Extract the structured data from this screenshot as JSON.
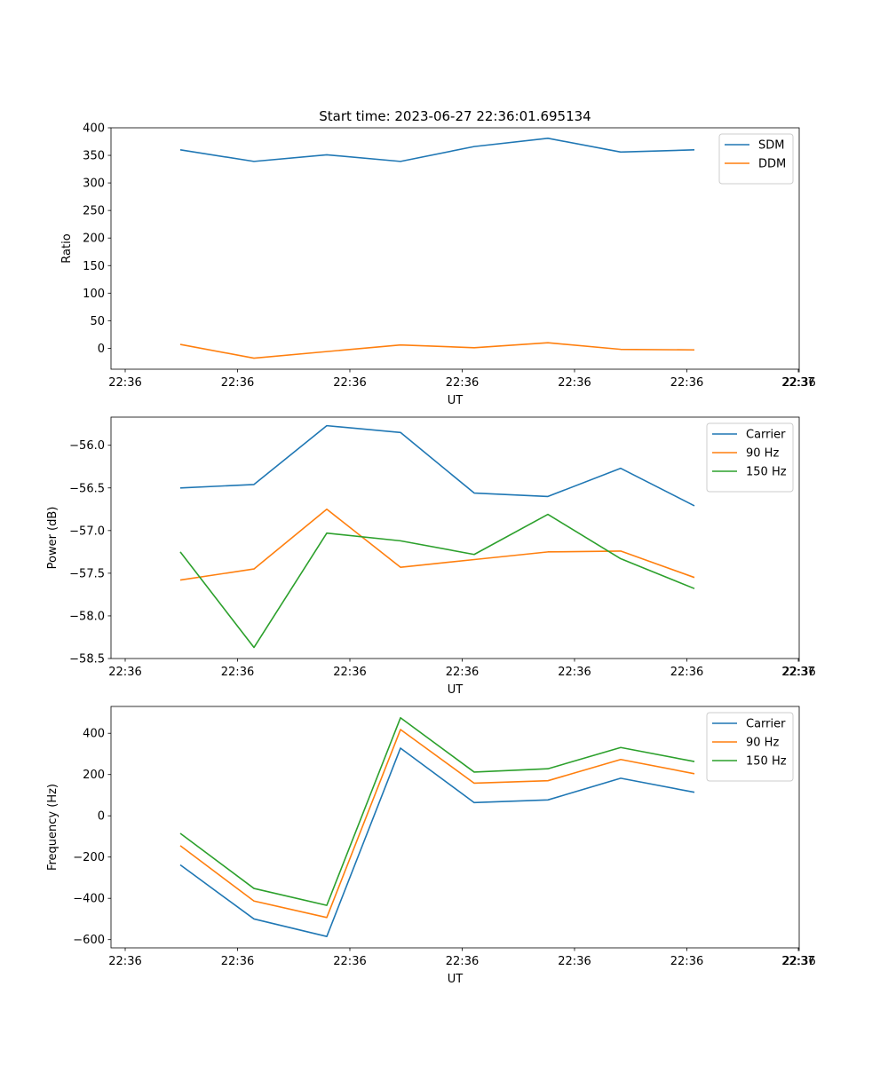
{
  "title": "Start time: 2023-06-27 22:36:01.695134",
  "colors": {
    "blue": "#1f77b4",
    "orange": "#ff7f0e",
    "green": "#2ca02c"
  },
  "chart_data": [
    {
      "type": "line",
      "title": "Start time: 2023-06-27 22:36:01.695134",
      "xlabel": "UT",
      "ylabel": "Ratio",
      "x_ticks": [
        "22:36",
        "22:36",
        "22:36",
        "22:36",
        "22:36",
        "22:36",
        "22:36",
        "22:37"
      ],
      "ylim": [
        -38,
        400
      ],
      "y_ticks": [
        0,
        50,
        100,
        150,
        200,
        250,
        300,
        350,
        400
      ],
      "y_tick_labels": [
        "0",
        "50",
        "100",
        "150",
        "200",
        "250",
        "300",
        "350",
        "400"
      ],
      "legend_position": "top-right",
      "grid": false,
      "series": [
        {
          "name": "SDM",
          "color": "#1f77b4",
          "values": [
            360,
            339,
            351,
            339,
            366,
            381,
            356,
            360
          ]
        },
        {
          "name": "DDM",
          "color": "#ff7f0e",
          "values": [
            7,
            -18,
            -6,
            6,
            1,
            10,
            -2,
            -3
          ]
        }
      ]
    },
    {
      "type": "line",
      "title": "",
      "xlabel": "UT",
      "ylabel": "Power (dB)",
      "x_ticks": [
        "22:36",
        "22:36",
        "22:36",
        "22:36",
        "22:36",
        "22:36",
        "22:36",
        "22:37"
      ],
      "ylim": [
        -58.5,
        -55.67
      ],
      "y_ticks": [
        -58.5,
        -58.0,
        -57.5,
        -57.0,
        -56.5,
        -56.0
      ],
      "y_tick_labels": [
        "−58.5",
        "−58.0",
        "−57.5",
        "−57.0",
        "−56.5",
        "−56.0"
      ],
      "legend_position": "top-right",
      "grid": false,
      "series": [
        {
          "name": "Carrier",
          "color": "#1f77b4",
          "values": [
            -56.5,
            -56.46,
            -55.77,
            -55.85,
            -56.56,
            -56.6,
            -56.27,
            -56.71
          ]
        },
        {
          "name": "90 Hz",
          "color": "#ff7f0e",
          "values": [
            -57.58,
            -57.45,
            -56.75,
            -57.43,
            -57.34,
            -57.25,
            -57.24,
            -57.55
          ]
        },
        {
          "name": "150 Hz",
          "color": "#2ca02c",
          "values": [
            -57.25,
            -58.37,
            -57.03,
            -57.12,
            -57.28,
            -56.81,
            -57.33,
            -57.68
          ]
        }
      ]
    },
    {
      "type": "line",
      "title": "",
      "xlabel": "UT",
      "ylabel": "Frequency (Hz)",
      "x_ticks": [
        "22:36",
        "22:36",
        "22:36",
        "22:36",
        "22:36",
        "22:36",
        "22:36",
        "22:37"
      ],
      "ylim": [
        -640,
        530
      ],
      "y_ticks": [
        -600,
        -400,
        -200,
        0,
        200,
        400
      ],
      "y_tick_labels": [
        "−600",
        "−400",
        "−200",
        "0",
        "200",
        "400"
      ],
      "legend_position": "top-right",
      "grid": false,
      "series": [
        {
          "name": "Carrier",
          "color": "#1f77b4",
          "values": [
            -238,
            -500,
            -585,
            328,
            64,
            77,
            182,
            114
          ]
        },
        {
          "name": "90 Hz",
          "color": "#ff7f0e",
          "values": [
            -145,
            -413,
            -493,
            418,
            158,
            170,
            273,
            204
          ]
        },
        {
          "name": "150 Hz",
          "color": "#2ca02c",
          "values": [
            -85,
            -352,
            -434,
            475,
            212,
            228,
            331,
            263
          ]
        }
      ]
    }
  ]
}
